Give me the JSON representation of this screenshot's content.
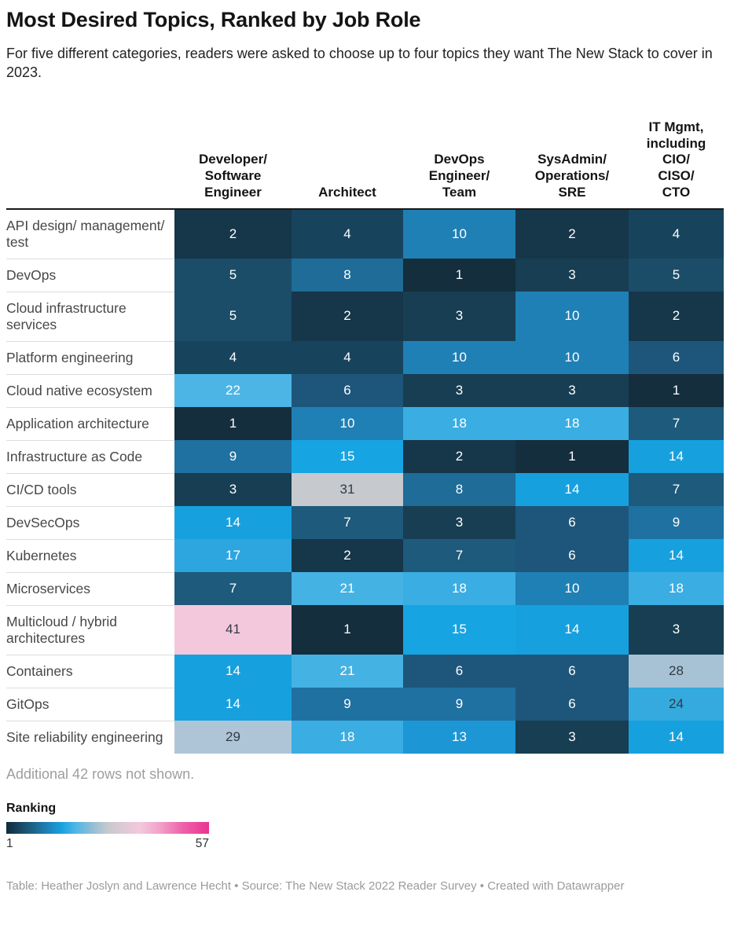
{
  "header": {
    "title": "Most Desired Topics, Ranked by Job Role",
    "subtitle": "For five different categories, readers were asked to choose up to four topics they want The New Stack to cover in 2023."
  },
  "note": "Additional 42 rows not shown.",
  "legend": {
    "title": "Ranking",
    "min_label": "1",
    "max_label": "57"
  },
  "footer": "Table: Heather Joslyn and Lawrence Hecht • Source: The New Stack 2022 Reader Survey • Created with Datawrapper",
  "colors": {
    "light_text": "#ffffff",
    "dark_text": "#333a42",
    "table_top_border": "#1a1a1a",
    "row_separator": "#dddddd",
    "note_gray": "#9e9e9e"
  },
  "palette": {
    "1": "#142e3d",
    "2": "#16364a",
    "3": "#173e52",
    "4": "#18435c",
    "5": "#1b4d68",
    "6": "#1d567a",
    "7": "#1d5a7c",
    "8": "#1e6c97",
    "9": "#1f71a1",
    "10": "#1f80b5",
    "13": "#1d96d6",
    "14": "#17a0de",
    "15": "#16a4e2",
    "17": "#2da6e0",
    "18": "#3aade2",
    "21": "#45b2e4",
    "22": "#4db5e6",
    "24": "#35aade",
    "28": "#a7c2d5",
    "29": "#aec5d7",
    "31": "#c6c9ce",
    "41": "#f4c8dc"
  },
  "dark_text_values": [
    24,
    28,
    29,
    31,
    41
  ],
  "legend_gradient": [
    "#0f2b3c 0%",
    "#1b4d68 8%",
    "#1f80b5 20%",
    "#17a0de 27%",
    "#4db5e6 34%",
    "#8fbdd4 42%",
    "#c6c9ce 50%",
    "#dfc9d6 58%",
    "#f4c8dc 66%",
    "#f29fc8 76%",
    "#ee62aa 87%",
    "#e93393 100%"
  ],
  "chart_data": {
    "type": "heatmap",
    "title": "Most Desired Topics, Ranked by Job Role",
    "subtitle": "For five different categories, readers were asked to choose up to four topics they want The New Stack to cover in 2023.",
    "legend_label": "Ranking",
    "scale": {
      "min": 1,
      "max": 57
    },
    "columns": [
      "Developer/ Software Engineer",
      "Architect",
      "DevOps Engineer/ Team",
      "SysAdmin/ Operations/ SRE",
      "IT Mgmt, including CIO/ CISO/ CTO"
    ],
    "rows": [
      "API design/ management/ test",
      "DevOps",
      "Cloud infrastructure services",
      "Platform engineering",
      "Cloud native ecosystem",
      "Application architecture",
      "Infrastructure as Code",
      "CI/CD tools",
      "DevSecOps",
      "Kubernetes",
      "Microservices",
      "Multicloud / hybrid architectures",
      "Containers",
      "GitOps",
      "Site reliability engineering"
    ],
    "values": [
      [
        2,
        4,
        10,
        2,
        4
      ],
      [
        5,
        8,
        1,
        3,
        5
      ],
      [
        5,
        2,
        3,
        10,
        2
      ],
      [
        4,
        4,
        10,
        10,
        6
      ],
      [
        22,
        6,
        3,
        3,
        1
      ],
      [
        1,
        10,
        18,
        18,
        7
      ],
      [
        9,
        15,
        2,
        1,
        14
      ],
      [
        3,
        31,
        8,
        14,
        7
      ],
      [
        14,
        7,
        3,
        6,
        9
      ],
      [
        17,
        2,
        7,
        6,
        14
      ],
      [
        7,
        21,
        18,
        10,
        18
      ],
      [
        41,
        1,
        15,
        14,
        3
      ],
      [
        14,
        21,
        6,
        6,
        28
      ],
      [
        14,
        9,
        9,
        6,
        24
      ],
      [
        29,
        18,
        13,
        3,
        14
      ]
    ]
  }
}
